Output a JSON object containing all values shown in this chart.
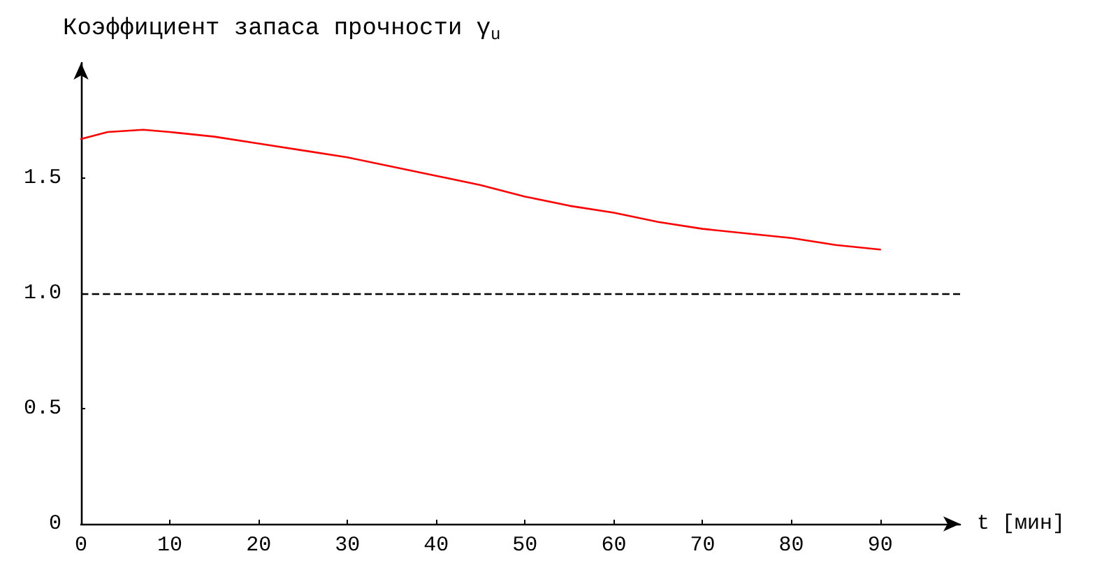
{
  "chart_data": {
    "type": "line",
    "title": "Коэффициент запаса прочности γ$_{u}$",
    "xlabel": "t [мин]",
    "x": [
      0,
      3,
      7,
      10,
      15,
      20,
      25,
      30,
      35,
      40,
      45,
      50,
      55,
      60,
      65,
      70,
      75,
      80,
      85,
      90
    ],
    "series": [
      {
        "color": "#ff0000",
        "values": [
          1.67,
          1.7,
          1.71,
          1.7,
          1.68,
          1.65,
          1.62,
          1.59,
          1.55,
          1.51,
          1.47,
          1.42,
          1.38,
          1.35,
          1.31,
          1.28,
          1.26,
          1.24,
          1.21,
          1.19
        ]
      }
    ],
    "xlim": [
      0,
      99
    ],
    "ylim": [
      0,
      2
    ],
    "xticks": [
      0,
      10,
      20,
      30,
      40,
      50,
      60,
      70,
      80,
      90
    ],
    "yticks": [
      0,
      0.5,
      {
        "value": 1,
        "label": "1.0"
      },
      1.5
    ],
    "ref_lines": [
      {
        "axis": "y",
        "value": 1,
        "color": "#000000",
        "line_style": "dashed"
      }
    ],
    "grid": false,
    "marker": "none",
    "line_style": "solid"
  }
}
